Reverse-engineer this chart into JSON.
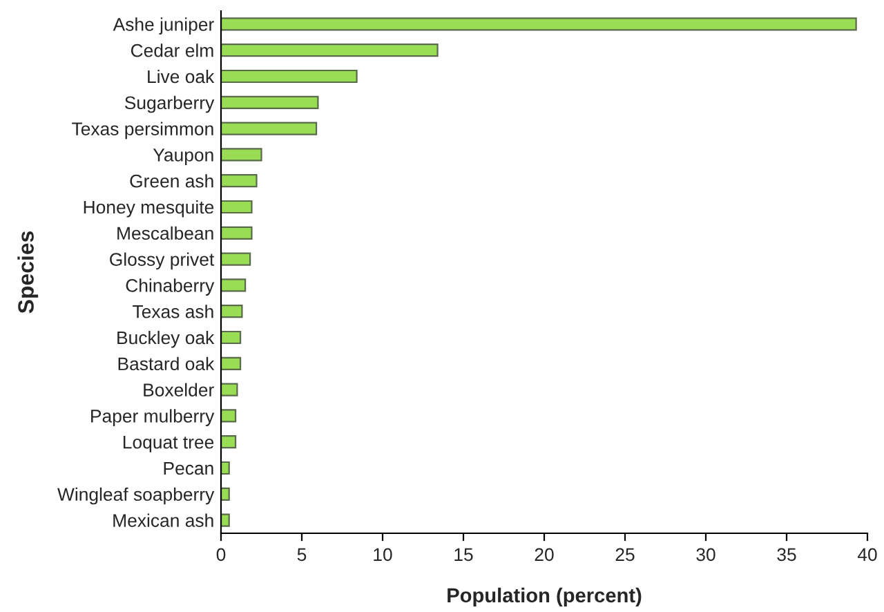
{
  "chart_data": {
    "type": "bar",
    "orientation": "horizontal",
    "xlabel": "Population (percent)",
    "ylabel": "Species",
    "categories": [
      "Ashe juniper",
      "Cedar elm",
      "Live oak",
      "Sugarberry",
      "Texas persimmon",
      "Yaupon",
      "Green ash",
      "Honey mesquite",
      "Mescalbean",
      "Glossy privet",
      "Chinaberry",
      "Texas ash",
      "Buckley oak",
      "Bastard oak",
      "Boxelder",
      "Paper mulberry",
      "Loquat tree",
      "Pecan",
      "Wingleaf soapberry",
      "Mexican ash"
    ],
    "values": [
      39.3,
      13.4,
      8.4,
      6.0,
      5.9,
      2.5,
      2.2,
      1.9,
      1.9,
      1.8,
      1.5,
      1.3,
      1.2,
      1.2,
      1.0,
      0.9,
      0.9,
      0.5,
      0.5,
      0.5
    ],
    "color": "#99dd55",
    "xlim": [
      0,
      40
    ],
    "xticks": [
      0,
      5,
      10,
      15,
      20,
      25,
      30,
      35,
      40
    ],
    "grid": false,
    "legend": false
  }
}
